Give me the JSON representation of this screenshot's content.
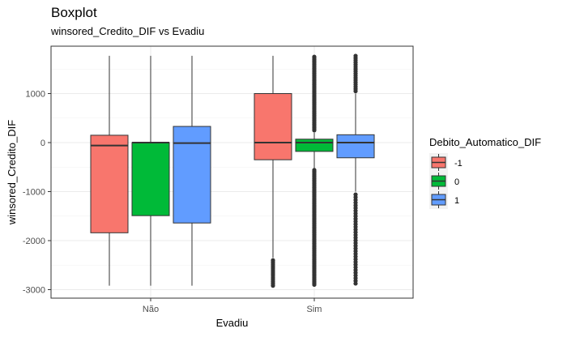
{
  "chart_data": {
    "type": "boxplot",
    "title": "Boxplot",
    "subtitle": "winsored_Credito_DIF vs Evadiu",
    "xlabel": "Evadiu",
    "ylabel": "winsored_Credito_DIF",
    "ylim": [
      -3200,
      1800
    ],
    "y_ticks": [
      1000,
      0,
      -1000,
      -2000,
      -3000
    ],
    "y_tick_labels": [
      "1000",
      "0",
      "-1000",
      "-2000",
      "-3000"
    ],
    "categories": [
      "Não",
      "Sim"
    ],
    "legend": {
      "title": "Debito_Automatico_DIF",
      "placement": "right",
      "entries": [
        "-1",
        "0",
        "1"
      ]
    },
    "series": [
      {
        "name": "-1",
        "color": "#F8766D",
        "boxes": [
          {
            "category": "Não",
            "min": -2920,
            "q1": -1840,
            "median": -60,
            "q3": 150,
            "max": 1770,
            "outliers": "none"
          },
          {
            "category": "Sim",
            "min": -2350,
            "q1": -350,
            "median": 0,
            "q3": 1000,
            "max": 1770,
            "outliers": "low-dense"
          }
        ]
      },
      {
        "name": "0",
        "color": "#00BA38",
        "boxes": [
          {
            "category": "Não",
            "min": -2920,
            "q1": -1490,
            "median": 0,
            "q3": 0,
            "max": 1770,
            "outliers": "none"
          },
          {
            "category": "Sim",
            "min": -520,
            "q1": -180,
            "median": 0,
            "q3": 70,
            "max": 200,
            "outliers": "both-dense"
          }
        ]
      },
      {
        "name": "1",
        "color": "#619CFF",
        "boxes": [
          {
            "category": "Não",
            "min": -2920,
            "q1": -1640,
            "median": -10,
            "q3": 330,
            "max": 1770,
            "outliers": "none"
          },
          {
            "category": "Sim",
            "min": -1000,
            "q1": -310,
            "median": 0,
            "q3": 160,
            "max": 1000,
            "outliers": "both-sparse"
          }
        ]
      }
    ],
    "grid": true
  }
}
